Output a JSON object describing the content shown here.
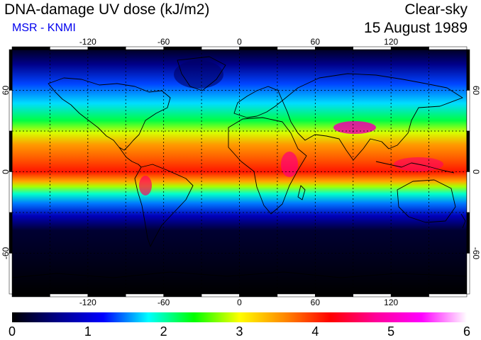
{
  "header": {
    "title": "DNA-damage UV dose (kJ/m2)",
    "subtitle": "MSR - KNMI",
    "sky": "Clear-sky",
    "date": "15 August 1989"
  },
  "map": {
    "lon_range": [
      -180,
      180
    ],
    "lat_range": [
      -90,
      90
    ],
    "grid_lon": [
      -150,
      -120,
      -90,
      -60,
      -30,
      0,
      30,
      60,
      90,
      120,
      150
    ],
    "grid_lat": [
      -60,
      -30,
      0,
      30,
      60
    ],
    "lon_ticks": [
      {
        "value": -120,
        "label": "-120"
      },
      {
        "value": -60,
        "label": "-60"
      },
      {
        "value": 0,
        "label": "0"
      },
      {
        "value": 60,
        "label": "60"
      },
      {
        "value": 120,
        "label": "120"
      }
    ],
    "lat_ticks": [
      {
        "value": 60,
        "label": "60"
      },
      {
        "value": 0,
        "label": "0"
      },
      {
        "value": -60,
        "label": "-60"
      }
    ]
  },
  "colorbar": {
    "min": 0,
    "max": 6,
    "labels": [
      "0",
      "1",
      "2",
      "3",
      "4",
      "5",
      "6"
    ],
    "stops": [
      "#000000",
      "#000088",
      "#0000ff",
      "#00ffff",
      "#00ff00",
      "#ffff00",
      "#ff8800",
      "#ff0000",
      "#ff0099",
      "#ff00ff",
      "#ffffff"
    ]
  }
}
